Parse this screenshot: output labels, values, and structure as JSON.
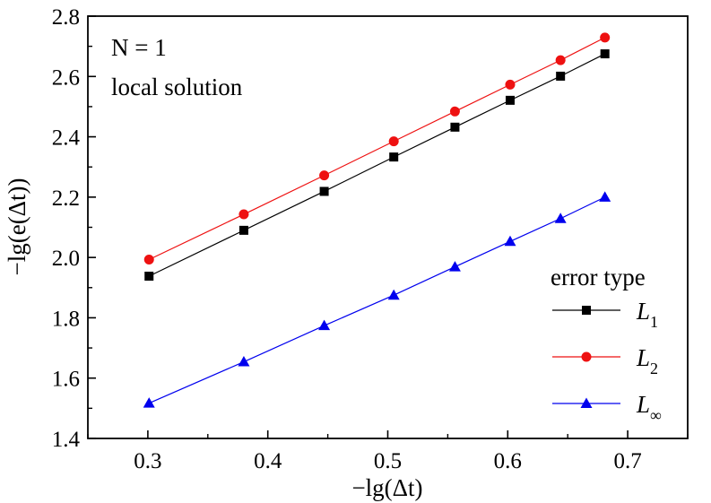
{
  "chart_data": {
    "type": "line",
    "xlabel": "−lg(Δt)",
    "ylabel": "−lg(e(Δt))",
    "xlim": [
      0.25,
      0.75
    ],
    "ylim": [
      1.4,
      2.8
    ],
    "x_ticks": [
      "0.3",
      "0.4",
      "0.5",
      "0.6",
      "0.7"
    ],
    "x_tick_values": [
      0.3,
      0.4,
      0.5,
      0.6,
      0.7
    ],
    "y_ticks": [
      "1.4",
      "1.6",
      "1.8",
      "2.0",
      "2.2",
      "2.4",
      "2.6",
      "2.8"
    ],
    "y_tick_values": [
      1.4,
      1.6,
      1.8,
      2.0,
      2.2,
      2.4,
      2.6,
      2.8
    ],
    "annotations": {
      "line1": "N = 1",
      "line2": "local solution"
    },
    "legend": {
      "title": "error type",
      "position": "bottom-right"
    },
    "x": [
      0.301,
      0.38,
      0.447,
      0.505,
      0.556,
      0.602,
      0.644,
      0.681
    ],
    "series": [
      {
        "name": "L1",
        "color": "#000000",
        "marker": "square",
        "values": [
          1.938,
          2.09,
          2.219,
          2.333,
          2.432,
          2.521,
          2.601,
          2.675
        ]
      },
      {
        "name": "L2",
        "color": "#ee1111",
        "marker": "circle",
        "values": [
          1.993,
          2.143,
          2.272,
          2.385,
          2.484,
          2.573,
          2.654,
          2.729
        ]
      },
      {
        "name": "L∞",
        "color": "#0000ee",
        "marker": "triangle",
        "values": [
          1.517,
          1.654,
          1.774,
          1.875,
          1.969,
          2.053,
          2.129,
          2.2
        ]
      }
    ]
  }
}
